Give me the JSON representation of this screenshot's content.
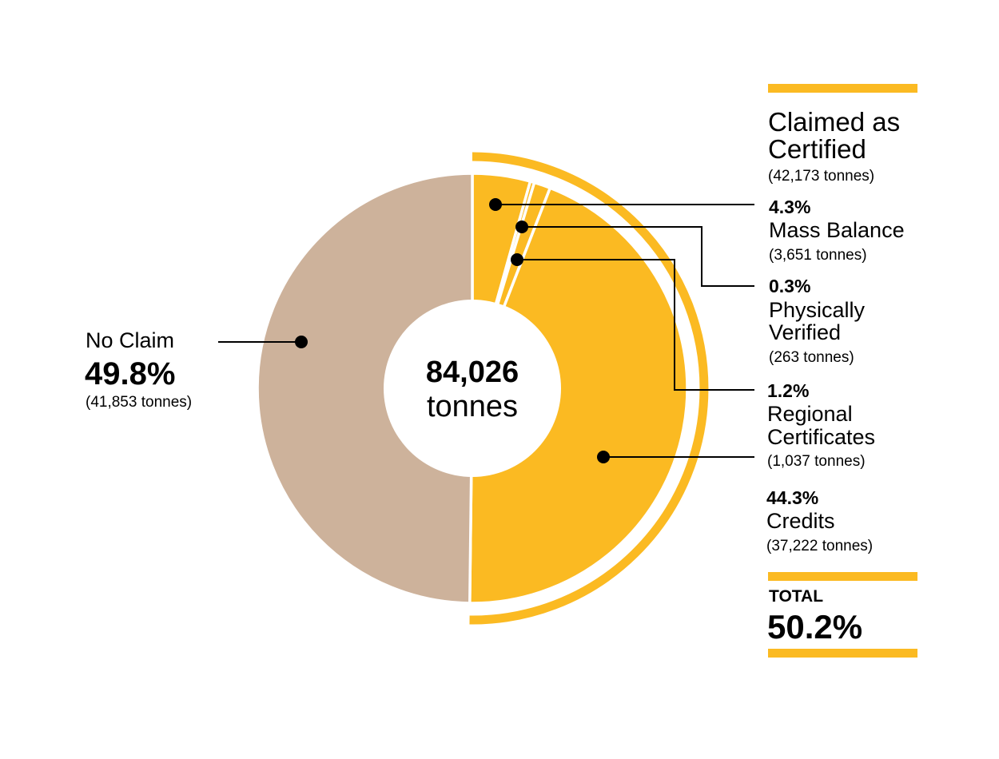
{
  "colors": {
    "certified": "#FBBA22",
    "no_claim": "#CDB29B",
    "background": "#FFFFFF",
    "line": "#000000"
  },
  "center": {
    "value": "84,026",
    "unit": "tonnes"
  },
  "heading": {
    "line1": "Claimed as",
    "line2": "Certified",
    "tonnes": "(42,173 tonnes)"
  },
  "no_claim": {
    "label": "No Claim",
    "pct": "49.8%",
    "tonnes": "(41,853 tonnes)"
  },
  "legend": [
    {
      "pct": "4.3%",
      "lines": [
        "Mass Balance"
      ],
      "tonnes": "(3,651 tonnes)"
    },
    {
      "pct": "0.3%",
      "lines": [
        "Physically",
        "Verified"
      ],
      "tonnes": "(263 tonnes)"
    },
    {
      "pct": "1.2%",
      "lines": [
        "Regional",
        "Certificates"
      ],
      "tonnes": "(1,037 tonnes)"
    },
    {
      "pct": "44.3%",
      "lines": [
        "Credits"
      ],
      "tonnes": "(37,222 tonnes)"
    }
  ],
  "total": {
    "label": "TOTAL",
    "pct": "50.2%"
  },
  "chart_data": {
    "type": "pie",
    "title": "",
    "unit": "tonnes",
    "total": 84026,
    "slices": [
      {
        "name": "Mass Balance",
        "value": 3651,
        "percent": 4.3
      },
      {
        "name": "Physically Verified",
        "value": 263,
        "percent": 0.3
      },
      {
        "name": "Regional Certificates",
        "value": 1037,
        "percent": 1.2
      },
      {
        "name": "Credits",
        "value": 37222,
        "percent": 44.3
      },
      {
        "name": "No Claim",
        "value": 41853,
        "percent": 49.8
      }
    ],
    "group": {
      "name": "Claimed as Certified",
      "value": 42173,
      "percent": 50.2
    }
  }
}
